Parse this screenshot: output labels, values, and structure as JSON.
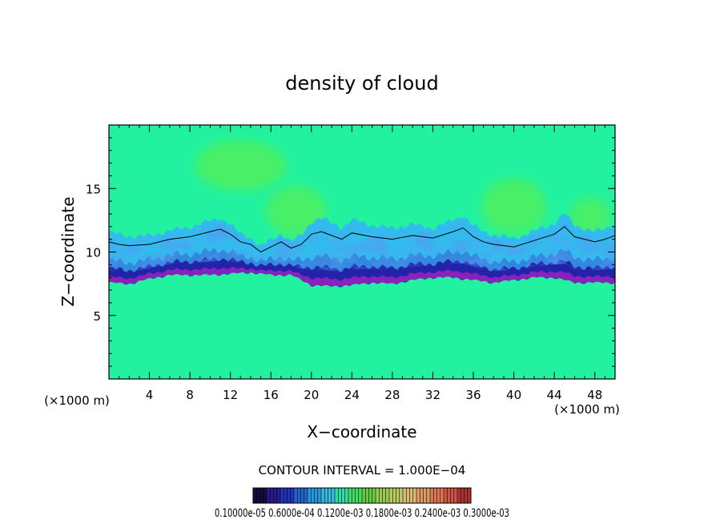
{
  "chart_data": {
    "type": "heatmap",
    "title": "density of cloud",
    "xlabel": "X−coordinate",
    "ylabel": "Z−coordinate",
    "x_unit_label": "(×1000 m)",
    "y_unit_label": "(×1000 m)",
    "xlim": [
      0,
      50
    ],
    "ylim": [
      0,
      20
    ],
    "x_ticks": [
      4,
      8,
      12,
      16,
      20,
      24,
      28,
      32,
      36,
      40,
      44,
      48
    ],
    "y_ticks": [
      5,
      10,
      15
    ],
    "x_tick_labels": [
      "4",
      "8",
      "12",
      "16",
      "20",
      "24",
      "28",
      "32",
      "36",
      "40",
      "44",
      "48"
    ],
    "y_tick_labels": [
      "5",
      "10",
      "15"
    ],
    "contour_interval_text": "CONTOUR INTERVAL = 1.000E−04",
    "colorbar_labels_text": "0.10000e-05 0.6000e-04 0.1200e-03 0.1800e-03 0.2400e-03 0.3000e-03",
    "colors": {
      "upper_field": "#22f2a0",
      "lighter_blob": "#55ee55",
      "transition_cyan": "#33bbee",
      "dark_blue_band": "#2222aa",
      "bottom_purple": "#8822bb",
      "background": "#ffffff"
    },
    "base_profile": {
      "x": [
        0,
        2,
        4,
        6,
        8,
        10,
        12,
        14,
        16,
        18,
        20,
        22,
        24,
        26,
        28,
        30,
        32,
        34,
        36,
        38,
        40,
        42,
        44,
        46,
        48,
        50
      ],
      "z": [
        7.6,
        7.5,
        7.9,
        8.2,
        8.2,
        8.2,
        8.3,
        8.4,
        8.2,
        8.2,
        7.4,
        7.3,
        7.4,
        7.6,
        7.5,
        7.8,
        8.0,
        8.0,
        7.8,
        7.6,
        7.8,
        8.0,
        8.0,
        7.6,
        7.6,
        7.6
      ]
    },
    "contour_top": {
      "x": [
        0,
        1,
        2,
        4,
        6,
        8,
        10,
        11,
        12,
        13,
        14,
        15,
        16,
        17,
        18,
        19,
        20,
        21,
        22,
        23,
        24,
        26,
        28,
        30,
        32,
        34,
        35,
        36,
        37,
        38,
        40,
        42,
        44,
        45,
        46,
        47,
        48,
        49,
        50
      ],
      "z": [
        10.8,
        10.6,
        10.5,
        10.6,
        11.0,
        11.2,
        11.6,
        11.8,
        11.4,
        10.8,
        10.6,
        10.0,
        10.4,
        10.8,
        10.3,
        10.6,
        11.4,
        11.6,
        11.3,
        11.0,
        11.5,
        11.2,
        11.0,
        11.3,
        11.1,
        11.6,
        11.9,
        11.2,
        10.8,
        10.6,
        10.4,
        10.9,
        11.4,
        12.0,
        11.2,
        11.0,
        10.8,
        11.0,
        11.3
      ]
    },
    "lighter_blobs": [
      {
        "cx": 18.5,
        "cz": 13.2,
        "rx": 3.0,
        "rz": 2.0
      },
      {
        "cx": 40.0,
        "cz": 13.6,
        "rx": 3.2,
        "rz": 2.2
      },
      {
        "cx": 47.5,
        "cz": 12.8,
        "rx": 2.0,
        "rz": 1.5
      },
      {
        "cx": 13.0,
        "cz": 16.8,
        "rx": 4.5,
        "rz": 2.0
      }
    ],
    "colorbar_colors": [
      "#1a0a3a",
      "#2a1a8a",
      "#2233bb",
      "#2266cc",
      "#2299dd",
      "#33bbdd",
      "#33ddaa",
      "#44dd66",
      "#66cc44",
      "#99cc55",
      "#bbcc66",
      "#ddbb77",
      "#dd9966",
      "#dd7755",
      "#cc5544",
      "#aa3333"
    ]
  }
}
